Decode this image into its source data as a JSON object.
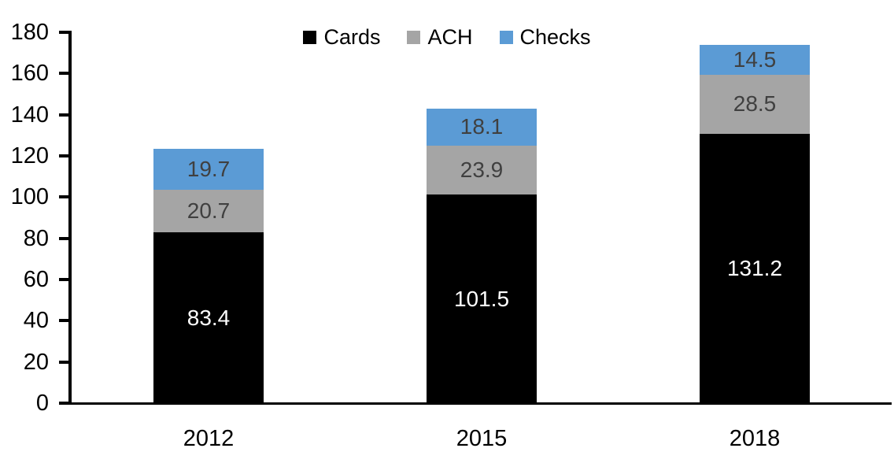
{
  "chart_data": {
    "type": "bar",
    "stacked": true,
    "categories": [
      "2012",
      "2015",
      "2018"
    ],
    "series": [
      {
        "name": "Cards",
        "color": "#000000",
        "label_color": "#ffffff",
        "values": [
          83.4,
          101.5,
          131.2
        ]
      },
      {
        "name": "ACH",
        "color": "#a5a5a5",
        "label_color": "#404040",
        "values": [
          20.7,
          23.9,
          28.5
        ]
      },
      {
        "name": "Checks",
        "color": "#5b9bd5",
        "label_color": "#404040",
        "values": [
          19.7,
          18.1,
          14.5
        ]
      }
    ],
    "ylim": [
      0,
      180
    ],
    "ytick_step": 20,
    "y_ticks": [
      0,
      20,
      40,
      60,
      80,
      100,
      120,
      140,
      160,
      180
    ],
    "legend_position": "top",
    "grid": false,
    "axis_color": "#000000"
  }
}
